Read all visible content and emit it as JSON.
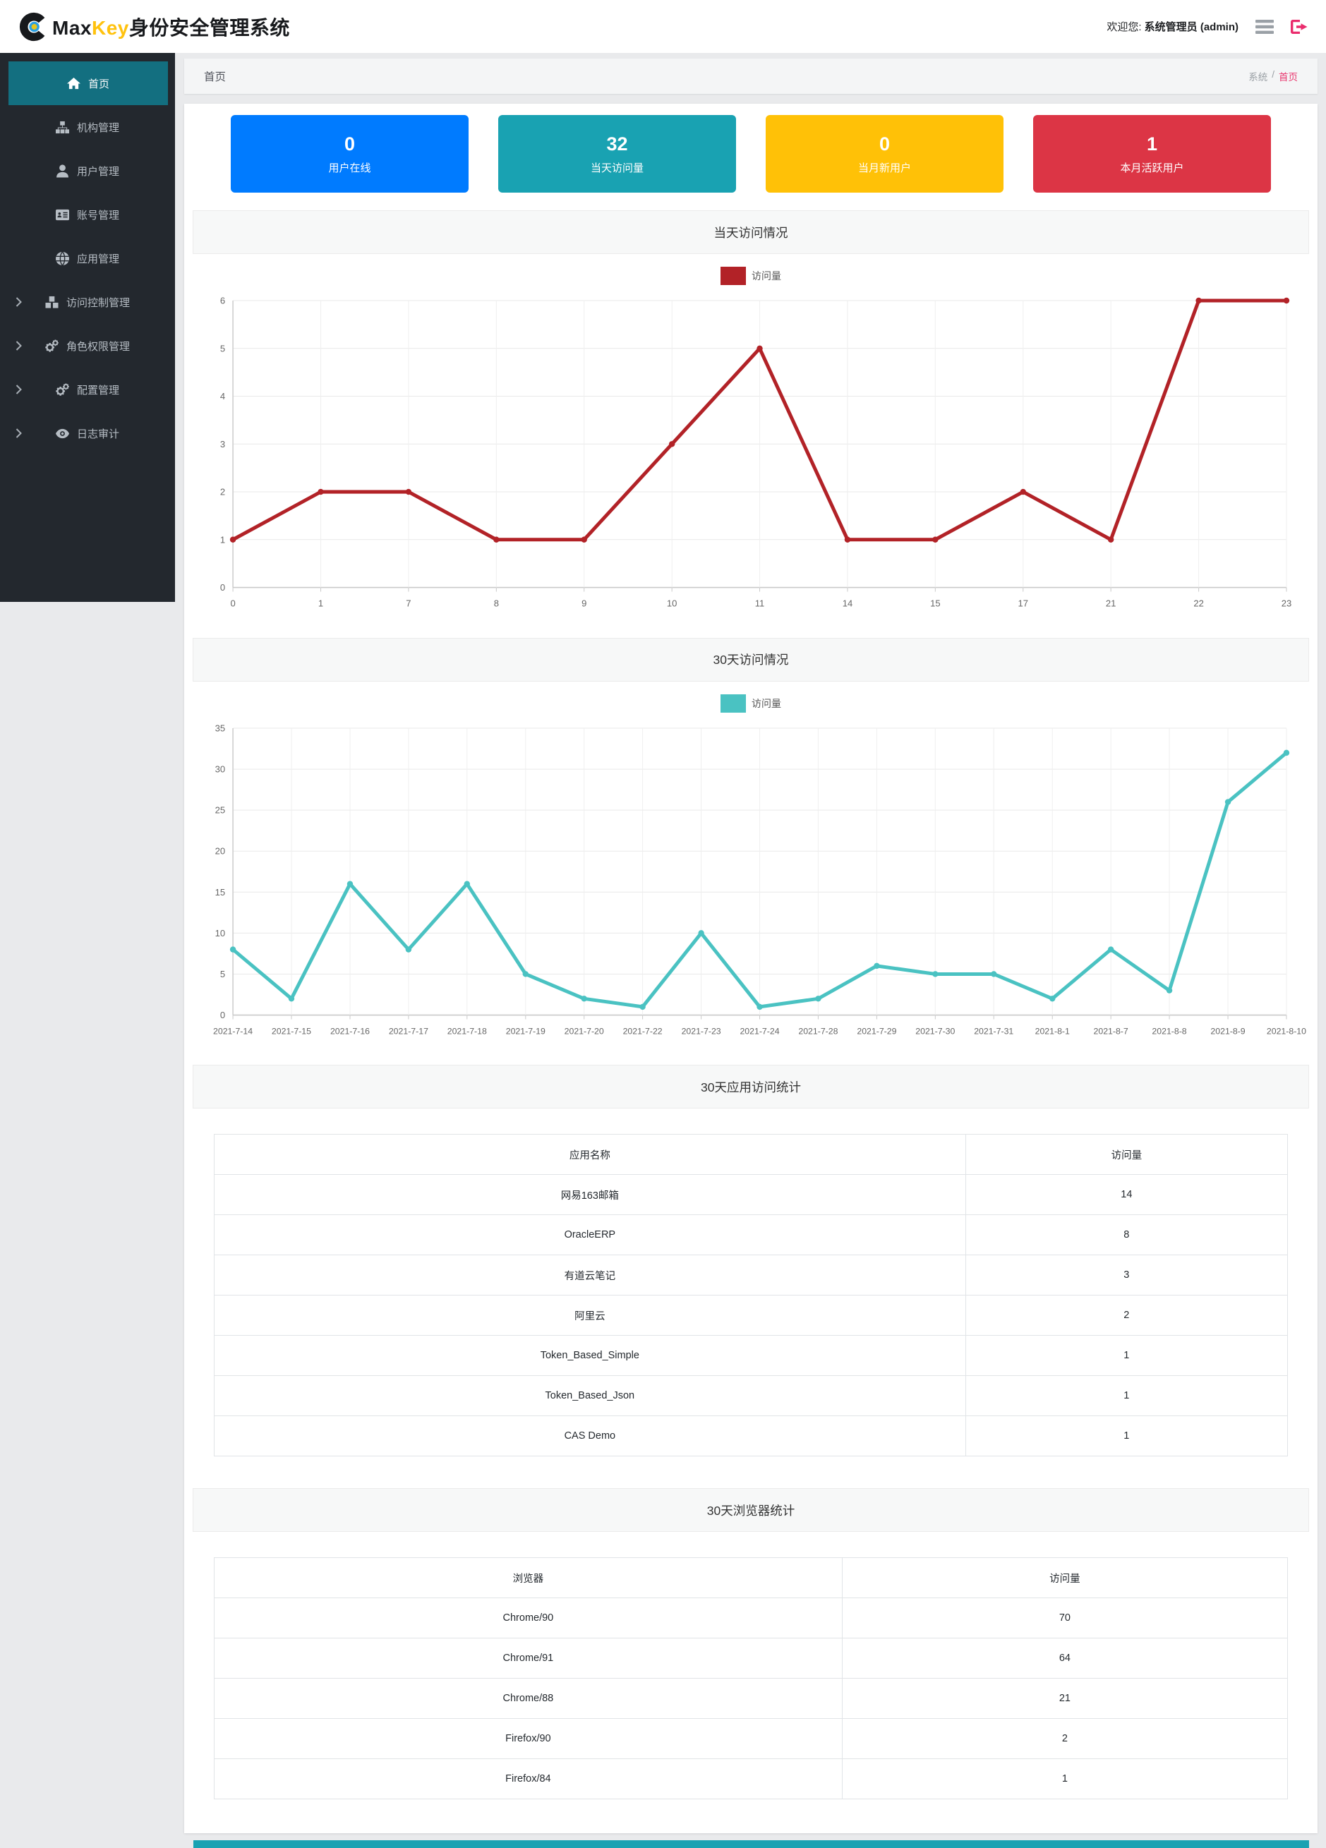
{
  "header": {
    "brand_max": "Max",
    "brand_key": "Key",
    "brand_suffix": "身份安全管理系统",
    "welcome_prefix": "欢迎您:",
    "welcome_user": "系统管理员 (admin)"
  },
  "sidebar": {
    "items": [
      {
        "id": "home",
        "label": "首页",
        "icon": "home-icon",
        "active": true,
        "expandable": false
      },
      {
        "id": "org",
        "label": "机构管理",
        "icon": "sitemap-icon",
        "active": false,
        "expandable": false
      },
      {
        "id": "user",
        "label": "用户管理",
        "icon": "user-icon",
        "active": false,
        "expandable": false
      },
      {
        "id": "account",
        "label": "账号管理",
        "icon": "id-card-icon",
        "active": false,
        "expandable": false
      },
      {
        "id": "app",
        "label": "应用管理",
        "icon": "globe-icon",
        "active": false,
        "expandable": false
      },
      {
        "id": "access-control",
        "label": "访问控制管理",
        "icon": "cubes-icon",
        "active": false,
        "expandable": true
      },
      {
        "id": "role-permission",
        "label": "角色权限管理",
        "icon": "gears-icon",
        "active": false,
        "expandable": true
      },
      {
        "id": "config",
        "label": "配置管理",
        "icon": "gears-icon",
        "active": false,
        "expandable": true
      },
      {
        "id": "audit",
        "label": "日志审计",
        "icon": "eye-icon",
        "active": false,
        "expandable": true
      }
    ]
  },
  "breadcrumb": {
    "page_title": "首页",
    "trail_root": "系统",
    "separator": "/",
    "trail_current": "首页"
  },
  "stats": [
    {
      "value": "0",
      "label": "用户在线",
      "color": "#007bff"
    },
    {
      "value": "32",
      "label": "当天访问量",
      "color": "#19a2b2"
    },
    {
      "value": "0",
      "label": "当月新用户",
      "color": "#ffc107"
    },
    {
      "value": "1",
      "label": "本月活跃用户",
      "color": "#dc3545"
    }
  ],
  "chart_data": [
    {
      "type": "line",
      "title": "当天访问情况",
      "legend": "访问量",
      "color": "#b22227",
      "categories": [
        "0",
        "1",
        "7",
        "8",
        "9",
        "10",
        "11",
        "14",
        "15",
        "17",
        "21",
        "22",
        "23"
      ],
      "values": [
        1,
        2,
        2,
        1,
        1,
        3,
        5,
        1,
        1,
        2,
        1,
        6,
        6
      ],
      "xlabel": "",
      "ylabel": "",
      "ylim": [
        0,
        6
      ],
      "yticks": [
        0,
        1,
        2,
        3,
        4,
        5,
        6
      ],
      "grid": true,
      "legend_position": "top"
    },
    {
      "type": "line",
      "title": "30天访问情况",
      "legend": "访问量",
      "color": "#4ac2c2",
      "categories": [
        "2021-7-14",
        "2021-7-15",
        "2021-7-16",
        "2021-7-17",
        "2021-7-18",
        "2021-7-19",
        "2021-7-20",
        "2021-7-22",
        "2021-7-23",
        "2021-7-24",
        "2021-7-28",
        "2021-7-29",
        "2021-7-30",
        "2021-7-31",
        "2021-8-1",
        "2021-8-7",
        "2021-8-8",
        "2021-8-9",
        "2021-8-10"
      ],
      "values": [
        8,
        2,
        16,
        8,
        16,
        5,
        2,
        1,
        10,
        1,
        2,
        6,
        5,
        5,
        2,
        8,
        3,
        26,
        32
      ],
      "xlabel": "",
      "ylabel": "",
      "ylim": [
        0,
        35
      ],
      "yticks": [
        0,
        5,
        10,
        15,
        20,
        25,
        30,
        35
      ],
      "grid": true,
      "legend_position": "top"
    }
  ],
  "tables": [
    {
      "title": "30天应用访问统计",
      "columns": [
        "应用名称",
        "访问量"
      ],
      "rows": [
        [
          "网易163邮箱",
          "14"
        ],
        [
          "OracleERP",
          "8"
        ],
        [
          "有道云笔记",
          "3"
        ],
        [
          "阿里云",
          "2"
        ],
        [
          "Token_Based_Simple",
          "1"
        ],
        [
          "Token_Based_Json",
          "1"
        ],
        [
          "CAS Demo",
          "1"
        ]
      ]
    },
    {
      "title": "30天浏览器统计",
      "columns": [
        "浏览器",
        "访问量"
      ],
      "rows": [
        [
          "Chrome/90",
          "70"
        ],
        [
          "Chrome/91",
          "64"
        ],
        [
          "Chrome/88",
          "21"
        ],
        [
          "Firefox/90",
          "2"
        ],
        [
          "Firefox/84",
          "1"
        ]
      ]
    }
  ],
  "colors": {
    "sidebar_bg": "#23282e",
    "sidebar_active": "#136f80",
    "brand_key": "#ffc20e",
    "crumb_active": "#e8356d",
    "logout_icon": "#ea2c6d",
    "footer": "#19a2b2"
  }
}
